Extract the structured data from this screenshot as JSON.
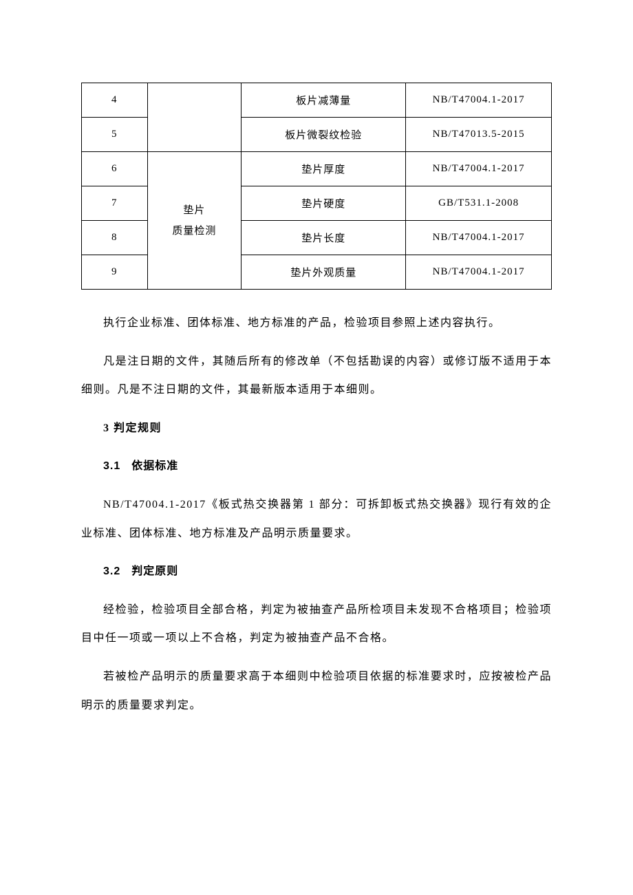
{
  "table": {
    "rows": [
      {
        "num": "4",
        "cat": "",
        "item": "板片减薄量",
        "std": "NB/T47004.1-2017"
      },
      {
        "num": "5",
        "cat": "",
        "item": "板片微裂纹检验",
        "std": "NB/T47013.5-2015"
      },
      {
        "num": "6",
        "cat": "",
        "item": "垫片厚度",
        "std": "NB/T47004.1-2017"
      },
      {
        "num": "7",
        "cat": "垫片",
        "item": "垫片硬度",
        "std": "GB/T531.1-2008"
      },
      {
        "num": "8",
        "cat": "质量检测",
        "item": "垫片长度",
        "std": "NB/T47004.1-2017"
      },
      {
        "num": "9",
        "cat": "",
        "item": "垫片外观质量",
        "std": "NB/T47004.1-2017"
      }
    ],
    "merged_cat_line1": "垫片",
    "merged_cat_line2": "质量检测"
  },
  "paragraphs": {
    "p1": "执行企业标准、团体标准、地方标准的产品，检验项目参照上述内容执行。",
    "p2": "凡是注日期的文件，其随后所有的修改单（不包括勘误的内容）或修订版不适用于本细则。凡是不注日期的文件，其最新版本适用于本细则。",
    "h3": "3 判定规则",
    "h31_num": "3.1",
    "h31_text": "依据标准",
    "p3": "NB/T47004.1-2017《板式热交换器第 1 部分：可拆卸板式热交换器》现行有效的企业标准、团体标准、地方标准及产品明示质量要求。",
    "h32_num": "3.2",
    "h32_text": "判定原则",
    "p4": "经检验，检验项目全部合格，判定为被抽查产品所检项目未发现不合格项目；检验项目中任一项或一项以上不合格，判定为被抽查产品不合格。",
    "p5": "若被检产品明示的质量要求高于本细则中检验项目依据的标准要求时，应按被检产品明示的质量要求判定。"
  }
}
